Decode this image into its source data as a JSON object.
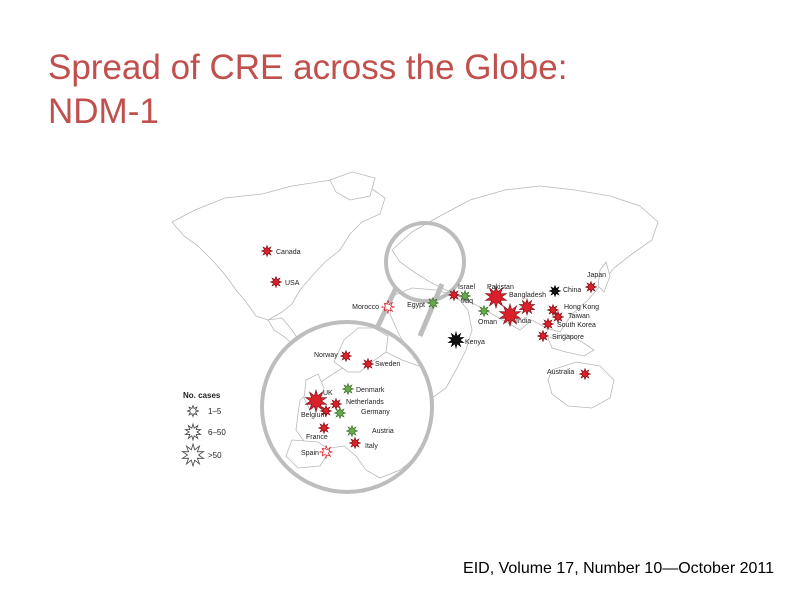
{
  "title": {
    "line1": "Spread of CRE across the Globe:",
    "line2": "NDM-1"
  },
  "citation": "EID, Volume 17, Number 10—October 2011",
  "colors": {
    "title": "#c0504d",
    "red_marker": "#d9202b",
    "green_marker": "#6aa84f",
    "black_marker": "#111111"
  },
  "legend": {
    "title": "No. cases",
    "items": [
      {
        "label": "1–5",
        "size": "small"
      },
      {
        "label": "6–50",
        "size": "medium"
      },
      {
        "label": ">50",
        "size": "large"
      }
    ]
  },
  "world_locations": [
    {
      "name": "Canada",
      "color": "red",
      "size": "small"
    },
    {
      "name": "USA",
      "color": "red",
      "size": "small"
    },
    {
      "name": "Morocco",
      "color": "red-white",
      "size": "small"
    },
    {
      "name": "Egypt",
      "color": "green",
      "size": "small"
    },
    {
      "name": "Israel",
      "color": "red",
      "size": "small"
    },
    {
      "name": "Iraq",
      "color": "green",
      "size": "small"
    },
    {
      "name": "Pakistan",
      "color": "red",
      "size": "large"
    },
    {
      "name": "Bangladesh",
      "color": "red",
      "size": "medium"
    },
    {
      "name": "India",
      "color": "red",
      "size": "large"
    },
    {
      "name": "Oman",
      "color": "green",
      "size": "small"
    },
    {
      "name": "Kenya",
      "color": "black",
      "size": "medium"
    },
    {
      "name": "China",
      "color": "black",
      "size": "small"
    },
    {
      "name": "Japan",
      "color": "red",
      "size": "small"
    },
    {
      "name": "Hong Kong",
      "color": "red",
      "size": "small"
    },
    {
      "name": "Taiwan",
      "color": "red",
      "size": "small"
    },
    {
      "name": "South Korea",
      "color": "red",
      "size": "small"
    },
    {
      "name": "Singapore",
      "color": "red",
      "size": "small"
    },
    {
      "name": "Australia",
      "color": "red",
      "size": "small"
    }
  ],
  "europe_locations": [
    {
      "name": "Norway",
      "color": "red",
      "size": "small"
    },
    {
      "name": "Sweden",
      "color": "red",
      "size": "small"
    },
    {
      "name": "Denmark",
      "color": "green",
      "size": "small"
    },
    {
      "name": "UK",
      "color": "red",
      "size": "large"
    },
    {
      "name": "Netherlands",
      "color": "red",
      "size": "small"
    },
    {
      "name": "Belgium",
      "color": "red",
      "size": "small"
    },
    {
      "name": "Germany",
      "color": "green",
      "size": "small"
    },
    {
      "name": "France",
      "color": "red",
      "size": "small"
    },
    {
      "name": "Austria",
      "color": "green",
      "size": "small"
    },
    {
      "name": "Italy",
      "color": "red",
      "size": "small"
    },
    {
      "name": "Spain",
      "color": "red-white",
      "size": "small"
    }
  ]
}
